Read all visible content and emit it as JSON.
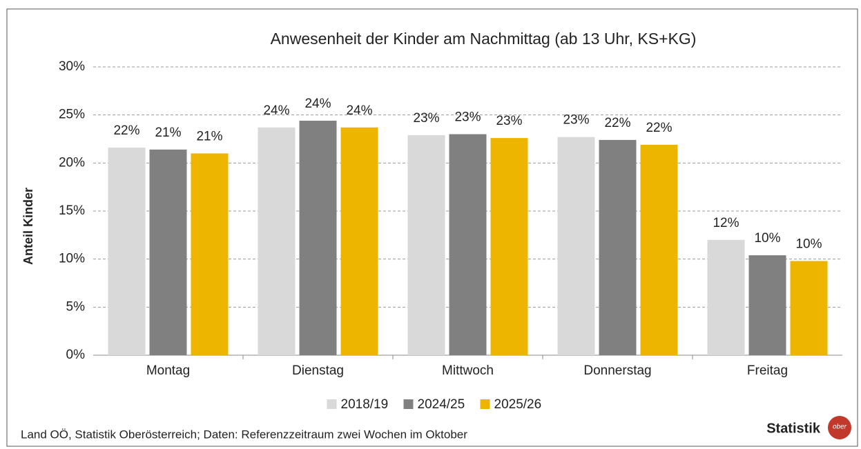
{
  "chart_data": {
    "type": "bar",
    "title": "Anwesenheit der Kinder am Nachmittag (ab 13 Uhr, KS+KG)",
    "y_label": "Anteil Kinder",
    "categories": [
      "Montag",
      "Dienstag",
      "Mittwoch",
      "Donnerstag",
      "Freitag"
    ],
    "series": [
      {
        "name": "2018/19",
        "color": "#d9d9d9",
        "values": [
          21.6,
          23.7,
          22.9,
          22.7,
          12.0
        ],
        "value_labels": [
          "22%",
          "24%",
          "23%",
          "23%",
          "12%"
        ]
      },
      {
        "name": "2024/25",
        "color": "#808080",
        "values": [
          21.4,
          24.4,
          23.0,
          22.4,
          10.4
        ],
        "value_labels": [
          "21%",
          "24%",
          "23%",
          "22%",
          "10%"
        ]
      },
      {
        "name": "2025/26",
        "color": "#eeb500",
        "values": [
          21.0,
          23.7,
          22.6,
          21.9,
          9.8
        ],
        "value_labels": [
          "21%",
          "24%",
          "23%",
          "22%",
          "10%"
        ]
      }
    ],
    "ylim": [
      0,
      30
    ],
    "yticks": [
      {
        "value": 0,
        "label": "0%"
      },
      {
        "value": 5,
        "label": "5%"
      },
      {
        "value": 10,
        "label": "10%"
      },
      {
        "value": 15,
        "label": "15%"
      },
      {
        "value": 20,
        "label": "20%"
      },
      {
        "value": 25,
        "label": "25%"
      },
      {
        "value": 30,
        "label": "30%"
      }
    ],
    "grid": true,
    "legend": "bottom",
    "source": "Land OÖ, Statistik Oberösterreich; Daten: Referenzzeitraum zwei Wochen im Oktober",
    "logo_text": "Statistik",
    "logo_badge": "ober"
  }
}
